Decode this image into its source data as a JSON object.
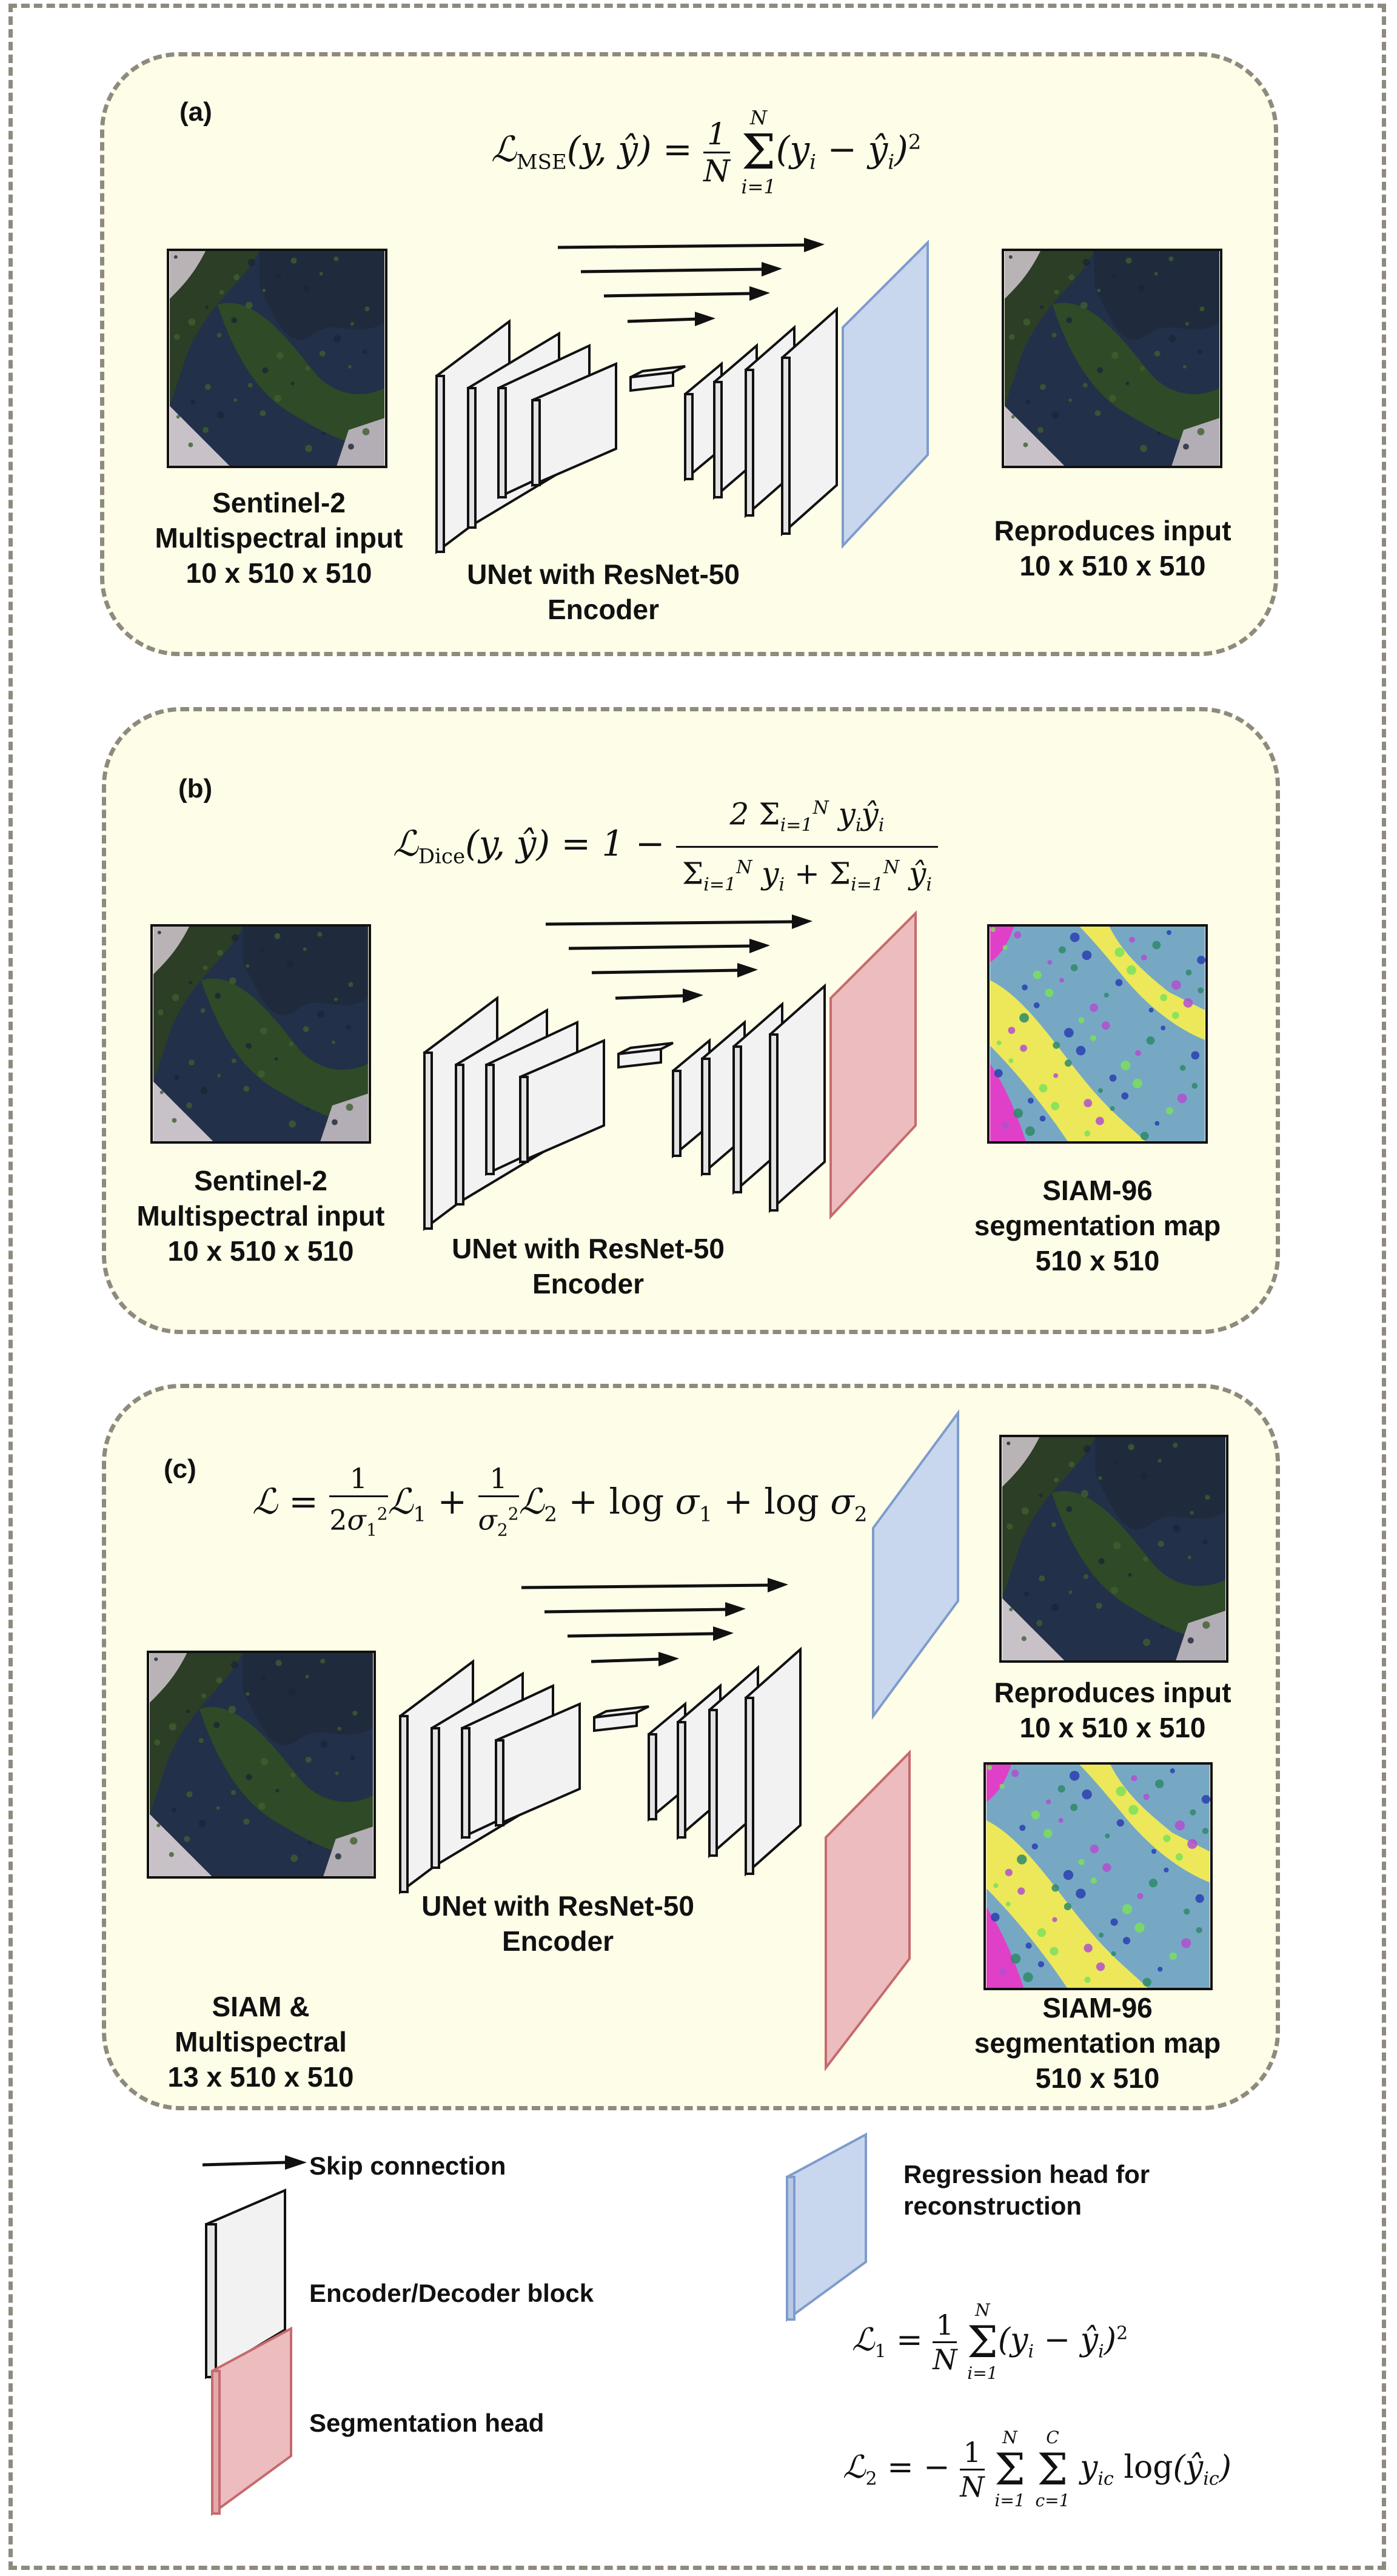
{
  "panels": {
    "a": {
      "label": "(a)",
      "equation": "ℒ_MSE(y, ŷ) = (1/N) Σ_{i=1}^{N} (y_i − ŷ_i)²",
      "input_caption": "Sentinel-2\nMultispectral input\n10 x 510 x 510",
      "net_caption": "UNet with ResNet-50\nEncoder",
      "output_caption": "Reproduces input\n10 x 510 x 510"
    },
    "b": {
      "label": "(b)",
      "equation": "ℒ_Dice(y, ŷ) = 1 − 2 Σ_{i=1}^{N} y_i ŷ_i / (Σ_{i=1}^{N} y_i + Σ_{i=1}^{N} ŷ_i)",
      "input_caption": "Sentinel-2\nMultispectral input\n10 x 510 x 510",
      "net_caption": "UNet with ResNet-50\nEncoder",
      "output_caption": "SIAM-96\nsegmentation map\n510 x 510"
    },
    "c": {
      "label": "(c)",
      "equation": "ℒ = (1/2σ₁²) ℒ₁ + (1/σ₂²) ℒ₂ + log σ₁ + log σ₂",
      "input_caption": "SIAM &\nMultispectral\n13 x 510 x 510",
      "net_caption": "UNet with ResNet-50\nEncoder",
      "output1_caption": "Reproduces input\n10 x 510 x 510",
      "output2_caption": "SIAM-96\nsegmentation map\n510 x 510"
    }
  },
  "legend": {
    "skip": "Skip connection",
    "block": "Encoder/Decoder block",
    "seg": "Segmentation head",
    "reg": "Regression head for\nreconstruction",
    "l1": "ℒ₁ = (1/N) Σ_{i=1}^{N} (y_i − ŷ_i)²",
    "l2": "ℒ₂ = −(1/N) Σ_{i=1}^{N} Σ_{c=1}^{C} y_ic log(ŷ_ic)"
  },
  "colors": {
    "panel_bg": "#fefde8",
    "dash": "#8f8a80",
    "block_fill": "#f2f2f2",
    "regression_head": "#c9d7ee",
    "segmentation_head": "#ecbcbe"
  }
}
